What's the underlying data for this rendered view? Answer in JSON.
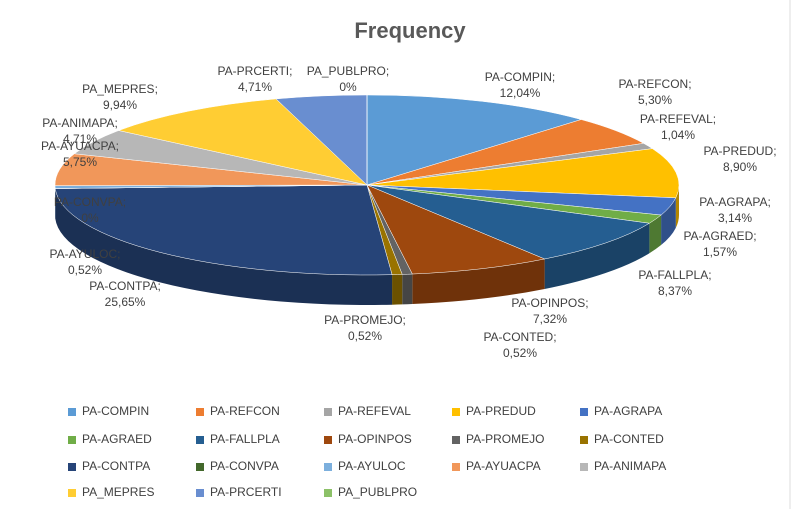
{
  "chart_data": {
    "type": "pie",
    "title": "Frequency",
    "categories": [
      "PA-COMPIN",
      "PA-REFCON",
      "PA-REFEVAL",
      "PA-PREDUD",
      "PA-AGRAPA",
      "PA-AGRAED",
      "PA-FALLPLA",
      "PA-OPINPOS",
      "PA-PROMEJO",
      "PA-CONTED",
      "PA-CONTPA",
      "PA-CONVPA",
      "PA-AYULOC",
      "PA-AYUACPA",
      "PA-ANIMAPA",
      "PA_MEPRES",
      "PA-PRCERTI",
      "PA_PUBLPRO"
    ],
    "slice_labels": [
      "PA-COMPIN;",
      "PA-REFCON;",
      "PA-REFEVAL;",
      "PA-PREDUD;",
      "PA-AGRAPA;",
      "PA-AGRAED;",
      "PA-FALLPLA;",
      "PA-OPINPOS;",
      "PA-PROMEJO;",
      "PA-CONTED;",
      "PA-CONTPA;",
      "PA-CONVPA;",
      "PA-AYULOC;",
      "PA-AYUACPA;",
      "PA-ANIMAPA;",
      "PA_MEPRES;",
      "PA-PRCERTI;",
      "PA_PUBLPRO;"
    ],
    "values": [
      12.04,
      5.3,
      1.04,
      8.9,
      3.14,
      1.57,
      8.37,
      7.32,
      0.52,
      0.52,
      25.65,
      0,
      0.52,
      5.75,
      4.71,
      9.94,
      4.71,
      0
    ],
    "value_labels": [
      "12,04%",
      "5,30%",
      "1,04%",
      "8,90%",
      "3,14%",
      "1,57%",
      "8,37%",
      "7,32%",
      "0,52%",
      "0,52%",
      "25,65%",
      "0%",
      "0,52%",
      "5,75%",
      "4,71%",
      "9,94%",
      "4,71%",
      "0%"
    ],
    "colors": [
      "#5b9bd5",
      "#ed7d31",
      "#a5a5a5",
      "#ffc000",
      "#4472c4",
      "#70ad47",
      "#255e91",
      "#9e480e",
      "#636363",
      "#997300",
      "#264478",
      "#43682b",
      "#7cafdd",
      "#f1975a",
      "#b7b7b7",
      "#ffcd33",
      "#698ed0",
      "#8cc168"
    ],
    "legend": "bottom"
  }
}
